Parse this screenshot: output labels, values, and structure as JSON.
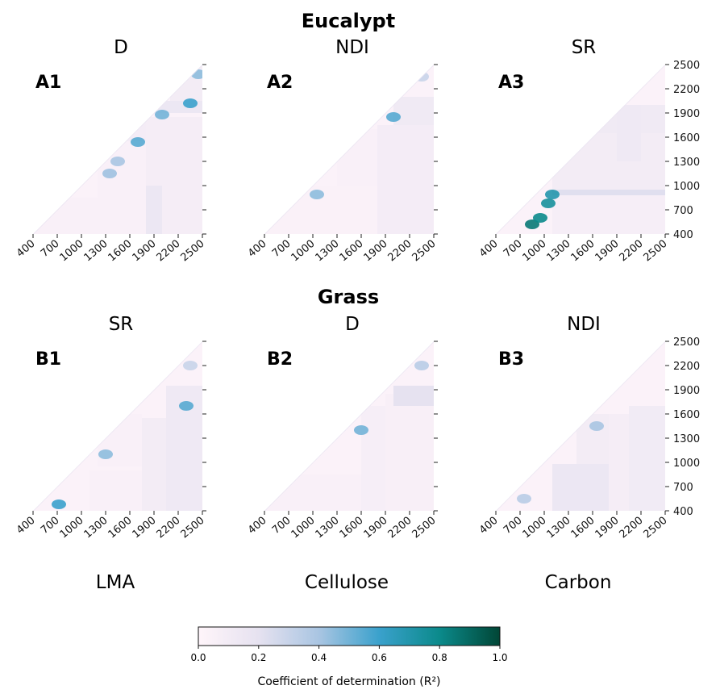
{
  "chart_data": {
    "type": "heatmap",
    "section_titles": [
      "Eucalypt",
      "Grass"
    ],
    "axis_ticks": [
      "400",
      "700",
      "1000",
      "1300",
      "1600",
      "1900",
      "2200",
      "2500"
    ],
    "axis_range": [
      400,
      2500
    ],
    "trait_labels": [
      "LMA",
      "Cellulose",
      "Carbon"
    ],
    "panels": [
      {
        "id": "A1",
        "label": "A1",
        "title": "D",
        "blocks": [
          {
            "x": [
              400,
              1800
            ],
            "y": [
              400,
              850
            ],
            "r2": 0.05
          },
          {
            "x": [
              1800,
              2500
            ],
            "y": [
              400,
              1850
            ],
            "r2": 0.08
          },
          {
            "x": [
              1800,
              2000
            ],
            "y": [
              400,
              1000
            ],
            "r2": 0.15
          },
          {
            "x": [
              1200,
              1800
            ],
            "y": [
              850,
              1800
            ],
            "r2": 0.05
          },
          {
            "x": [
              1500,
              1800
            ],
            "y": [
              1550,
              1800
            ],
            "r2": 0.09
          },
          {
            "x": [
              2100,
              2500
            ],
            "y": [
              2000,
              2500
            ],
            "r2": 0.1
          },
          {
            "x": [
              1950,
              2500
            ],
            "y": [
              1900,
              2050
            ],
            "r2": 0.15
          }
        ],
        "hotspots": [
          {
            "x": 1350,
            "y": 1150,
            "r2": 0.42
          },
          {
            "x": 1450,
            "y": 1300,
            "r2": 0.4
          },
          {
            "x": 1700,
            "y": 1540,
            "r2": 0.55
          },
          {
            "x": 2000,
            "y": 1880,
            "r2": 0.5
          },
          {
            "x": 2350,
            "y": 2020,
            "r2": 0.6
          },
          {
            "x": 2450,
            "y": 2380,
            "r2": 0.45
          }
        ]
      },
      {
        "id": "A2",
        "label": "A2",
        "title": "NDI",
        "blocks": [
          {
            "x": [
              400,
              1800
            ],
            "y": [
              400,
              1000
            ],
            "r2": 0.04
          },
          {
            "x": [
              1800,
              2500
            ],
            "y": [
              400,
              1750
            ],
            "r2": 0.09
          },
          {
            "x": [
              1300,
              1800
            ],
            "y": [
              1000,
              1700
            ],
            "r2": 0.05
          },
          {
            "x": [
              2000,
              2500
            ],
            "y": [
              1750,
              2100
            ],
            "r2": 0.12
          }
        ],
        "hotspots": [
          {
            "x": 1050,
            "y": 890,
            "r2": 0.45
          },
          {
            "x": 2000,
            "y": 1850,
            "r2": 0.55
          },
          {
            "x": 2350,
            "y": 2350,
            "r2": 0.3
          }
        ]
      },
      {
        "id": "A3",
        "label": "A3",
        "title": "SR",
        "blocks": [
          {
            "x": [
              1100,
              2500
            ],
            "y": [
              400,
              880
            ],
            "r2": 0.07
          },
          {
            "x": [
              1100,
              2500
            ],
            "y": [
              880,
              950
            ],
            "r2": 0.22
          },
          {
            "x": [
              1100,
              2500
            ],
            "y": [
              950,
              1650
            ],
            "r2": 0.1
          },
          {
            "x": [
              1600,
              2500
            ],
            "y": [
              1650,
              2000
            ],
            "r2": 0.12
          },
          {
            "x": [
              1900,
              2200
            ],
            "y": [
              1300,
              2000
            ],
            "r2": 0.13
          }
        ],
        "hotspots": [
          {
            "x": 850,
            "y": 520,
            "r2": 0.85
          },
          {
            "x": 950,
            "y": 600,
            "r2": 0.8
          },
          {
            "x": 1050,
            "y": 780,
            "r2": 0.75
          },
          {
            "x": 1100,
            "y": 890,
            "r2": 0.7
          }
        ]
      },
      {
        "id": "B1",
        "label": "B1",
        "title": "SR",
        "blocks": [
          {
            "x": [
              1100,
              1750
            ],
            "y": [
              400,
              900
            ],
            "r2": 0.05
          },
          {
            "x": [
              1750,
              2050
            ],
            "y": [
              400,
              1550
            ],
            "r2": 0.1
          },
          {
            "x": [
              2050,
              2500
            ],
            "y": [
              400,
              1950
            ],
            "r2": 0.13
          },
          {
            "x": [
              1200,
              1750
            ],
            "y": [
              950,
              1600
            ],
            "r2": 0.05
          }
        ],
        "hotspots": [
          {
            "x": 720,
            "y": 480,
            "r2": 0.6
          },
          {
            "x": 1300,
            "y": 1100,
            "r2": 0.45
          },
          {
            "x": 2300,
            "y": 1700,
            "r2": 0.55
          },
          {
            "x": 2350,
            "y": 2200,
            "r2": 0.3
          }
        ]
      },
      {
        "id": "B2",
        "label": "B2",
        "title": "D",
        "blocks": [
          {
            "x": [
              400,
              1600
            ],
            "y": [
              400,
              850
            ],
            "r2": 0.05
          },
          {
            "x": [
              1600,
              1900
            ],
            "y": [
              400,
              1700
            ],
            "r2": 0.07
          },
          {
            "x": [
              1900,
              2500
            ],
            "y": [
              400,
              1850
            ],
            "r2": 0.06
          },
          {
            "x": [
              2000,
              2500
            ],
            "y": [
              1700,
              1950
            ],
            "r2": 0.2
          }
        ],
        "hotspots": [
          {
            "x": 1600,
            "y": 1400,
            "r2": 0.5
          },
          {
            "x": 2350,
            "y": 2200,
            "r2": 0.35
          }
        ]
      },
      {
        "id": "B3",
        "label": "B3",
        "title": "NDI",
        "blocks": [
          {
            "x": [
              1100,
              1800
            ],
            "y": [
              400,
              980
            ],
            "r2": 0.15
          },
          {
            "x": [
              1800,
              2050
            ],
            "y": [
              400,
              1600
            ],
            "r2": 0.08
          },
          {
            "x": [
              2050,
              2500
            ],
            "y": [
              400,
              1700
            ],
            "r2": 0.11
          },
          {
            "x": [
              1400,
              1800
            ],
            "y": [
              980,
              1600
            ],
            "r2": 0.1
          }
        ],
        "hotspots": [
          {
            "x": 750,
            "y": 550,
            "r2": 0.35
          },
          {
            "x": 1650,
            "y": 1450,
            "r2": 0.4
          }
        ]
      }
    ],
    "colorbar": {
      "label": "Coefficient of determination (R²)",
      "ticks": [
        "0.0",
        "0.2",
        "0.4",
        "0.6",
        "0.8",
        "1.0"
      ],
      "range": [
        0,
        1
      ],
      "stops": [
        {
          "v": 0.0,
          "color": "#fff5fa"
        },
        {
          "v": 0.2,
          "color": "#e6e2f0"
        },
        {
          "v": 0.4,
          "color": "#a9c5e2"
        },
        {
          "v": 0.6,
          "color": "#3aa1cc"
        },
        {
          "v": 0.8,
          "color": "#0b8a8b"
        },
        {
          "v": 1.0,
          "color": "#014636"
        }
      ]
    }
  }
}
